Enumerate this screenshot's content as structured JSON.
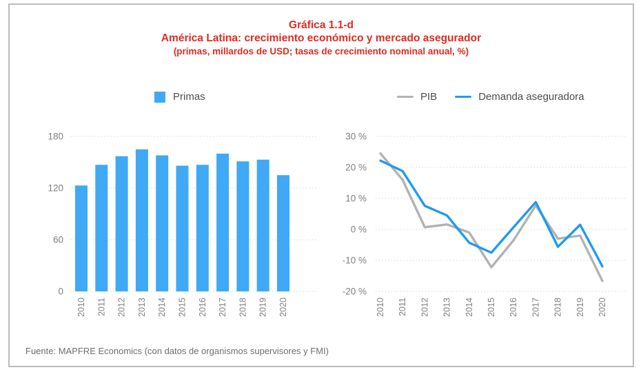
{
  "header": {
    "title": "Gráfica 1.1-d",
    "subtitle": "América Latina: crecimiento económico y mercado asegurador",
    "units_note": "(primas, millardos de USD; tasas de crecimiento nominal anual, %)"
  },
  "legends": {
    "primas_label": "Primas",
    "pib_label": "PIB",
    "demanda_label": "Demanda aseguradora"
  },
  "footer": {
    "source": "Fuente: MAPFRE Economics (con datos de organismos supervisores y FMI)"
  },
  "colors": {
    "title_red": "#e02b22",
    "bar_blue": "#3fa9f5",
    "line_blue": "#1f9bf0",
    "line_gray": "#b2b2b2",
    "axis_text": "#7f7f7f",
    "grid": "#d6d6d6",
    "legend_text": "#4d4d4f",
    "footer_gray": "#6d6e71",
    "border_gray": "#b9bcbe"
  },
  "chart_data": [
    {
      "type": "bar",
      "title": "Primas",
      "categories": [
        "2010",
        "2011",
        "2012",
        "2013",
        "2014",
        "2015",
        "2016",
        "2017",
        "2018",
        "2019",
        "2020"
      ],
      "values": [
        123,
        147,
        157,
        165,
        158,
        146,
        147,
        160,
        151,
        153,
        135
      ],
      "ylabel": "primas (millardos de USD)",
      "yticks": [
        180,
        120,
        60,
        0
      ],
      "ylim": [
        0,
        180
      ],
      "grid": "dotted",
      "legend_position": "top"
    },
    {
      "type": "line",
      "categories": [
        "2010",
        "2011",
        "2012",
        "2013",
        "2014",
        "2015",
        "2016",
        "2017",
        "2018",
        "2019",
        "2020"
      ],
      "series": [
        {
          "name": "PIB",
          "color_key": "line_gray",
          "values": [
            24.5,
            16.0,
            0.7,
            1.6,
            -1.0,
            -12.2,
            -3.5,
            7.7,
            -3.0,
            -2.0,
            -16.6
          ]
        },
        {
          "name": "Demanda aseguradora",
          "color_key": "line_blue",
          "values": [
            22.2,
            18.8,
            7.6,
            4.5,
            -4.3,
            -7.5,
            0.7,
            8.8,
            -5.6,
            1.5,
            -11.9
          ]
        }
      ],
      "ylabel": "tasa de crecimiento nominal anual",
      "yticks": [
        30,
        20,
        10,
        0,
        -10,
        -20
      ],
      "ytick_suffix": " %",
      "ylim": [
        -20,
        30
      ],
      "grid": "dotted",
      "legend_position": "top"
    }
  ]
}
